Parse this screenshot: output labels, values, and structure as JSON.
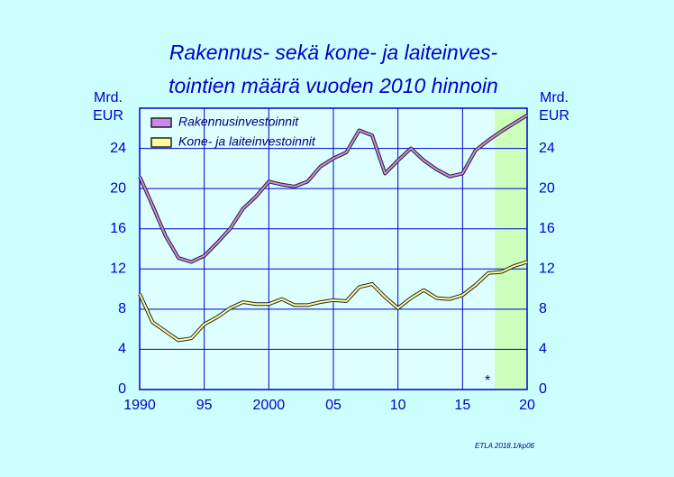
{
  "chart_data": {
    "type": "line",
    "title": [
      "Rakennus- sekä  kone- ja laiteinves-",
      "tointien määrä vuoden 2010 hinnoin"
    ],
    "y_label": [
      "Mrd.",
      "EUR"
    ],
    "y2_label": [
      "Mrd.",
      "EUR"
    ],
    "x": [
      1990,
      1991,
      1992,
      1993,
      1994,
      1995,
      1996,
      1997,
      1998,
      1999,
      2000,
      2001,
      2002,
      2003,
      2004,
      2005,
      2006,
      2007,
      2008,
      2009,
      2010,
      2011,
      2012,
      2013,
      2014,
      2015,
      2016,
      2017,
      2018,
      2019,
      2020
    ],
    "series": [
      {
        "name": "Rakennusinvestoinnit",
        "color": "#cc88ee",
        "values": [
          21.2,
          18.3,
          15.3,
          13.1,
          12.7,
          13.3,
          14.6,
          16.0,
          18.0,
          19.2,
          20.7,
          20.4,
          20.2,
          20.7,
          22.2,
          23.0,
          23.6,
          25.8,
          25.3,
          21.5,
          22.8,
          24.0,
          22.8,
          21.9,
          21.2,
          21.5,
          23.8,
          24.8,
          25.7,
          26.5,
          27.3
        ]
      },
      {
        "name": "Kone- ja laiteinvestoinnit",
        "color": "#ffff99",
        "values": [
          9.5,
          6.7,
          5.8,
          4.9,
          5.1,
          6.5,
          7.2,
          8.1,
          8.7,
          8.5,
          8.5,
          9.0,
          8.4,
          8.4,
          8.7,
          8.9,
          8.8,
          10.2,
          10.5,
          9.2,
          8.1,
          9.1,
          9.9,
          9.1,
          9.0,
          9.4,
          10.4,
          11.6,
          11.7,
          12.3,
          12.7
        ]
      }
    ],
    "xlim": [
      1990,
      2020
    ],
    "xticks": [
      {
        "value": 1990,
        "label": "1990"
      },
      {
        "value": 1995,
        "label": "95"
      },
      {
        "value": 2000,
        "label": "2000"
      },
      {
        "value": 2005,
        "label": "05"
      },
      {
        "value": 2010,
        "label": "10"
      },
      {
        "value": 2015,
        "label": "15"
      },
      {
        "value": 2020,
        "label": "20"
      }
    ],
    "ylim": [
      0,
      28
    ],
    "yticks": [
      0,
      4,
      8,
      12,
      16,
      20,
      24
    ],
    "y2lim": [
      0,
      28
    ],
    "y2ticks": [
      0,
      4,
      8,
      12,
      16,
      20,
      24
    ],
    "grid": true,
    "forecast_from": 2017.5,
    "forecast_color": "#ccffbb",
    "forecast_marker": "*",
    "source": "ETLA 2018.1/kp06"
  }
}
